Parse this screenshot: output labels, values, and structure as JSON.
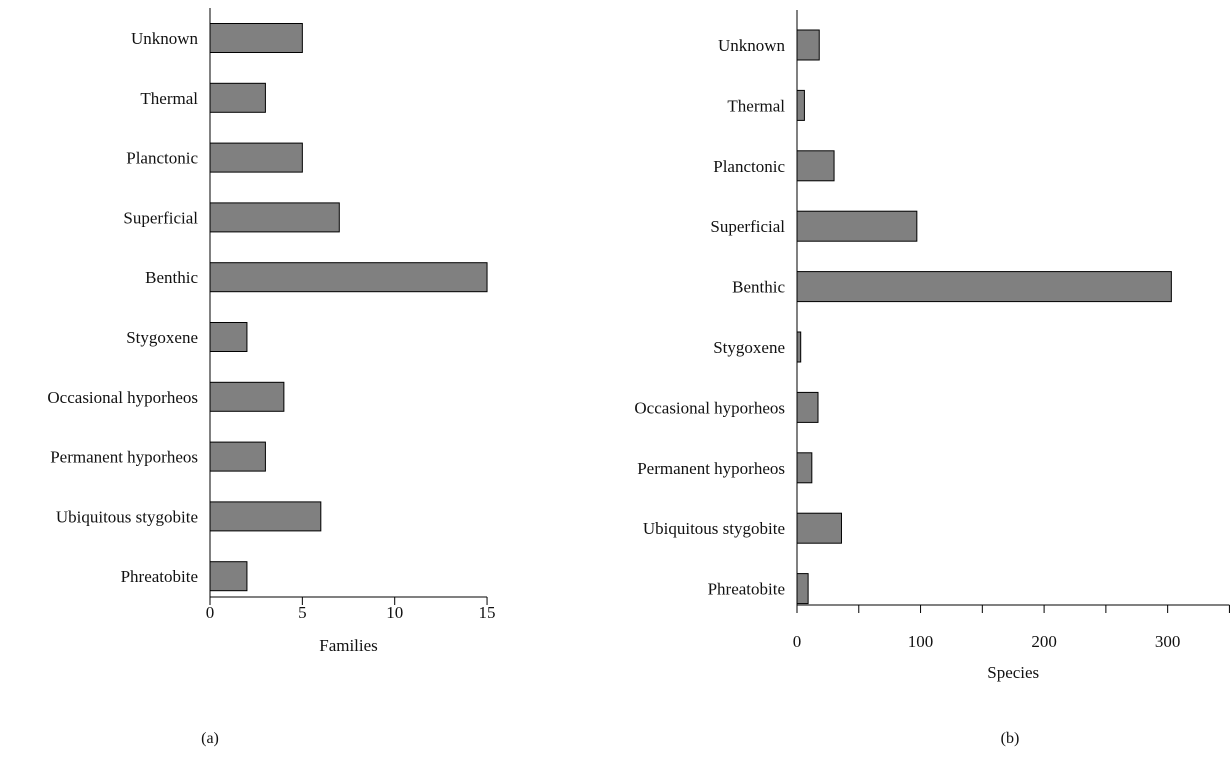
{
  "chart_data": [
    {
      "type": "bar",
      "orientation": "horizontal",
      "panel_label": "(a)",
      "categories": [
        "Unknown",
        "Thermal",
        "Planctonic",
        "Superficial",
        "Benthic",
        "Stygoxene",
        "Occasional hyporheos",
        "Permanent hyporheos",
        "Ubiquitous stygobite",
        "Phreatobite"
      ],
      "values": [
        5,
        3,
        5,
        7,
        15,
        2,
        4,
        3,
        6,
        2
      ],
      "xlabel": "Families",
      "ylabel": "",
      "xlim": [
        0,
        15
      ],
      "xticks": [
        "0",
        "5",
        "10",
        "15"
      ],
      "bar_color": "#808080",
      "grid": false
    },
    {
      "type": "bar",
      "orientation": "horizontal",
      "panel_label": "(b)",
      "categories": [
        "Unknown",
        "Thermal",
        "Planctonic",
        "Superficial",
        "Benthic",
        "Stygoxene",
        "Occasional hyporheos",
        "Permanent hyporheos",
        "Ubiquitous stygobite",
        "Phreatobite"
      ],
      "values": [
        18,
        6,
        30,
        97,
        303,
        3,
        17,
        12,
        36,
        9
      ],
      "xlabel": "Species",
      "ylabel": "",
      "xlim": [
        0,
        350
      ],
      "xticks": [
        "0",
        "100",
        "200",
        "300"
      ],
      "bar_color": "#808080",
      "grid": false
    }
  ]
}
